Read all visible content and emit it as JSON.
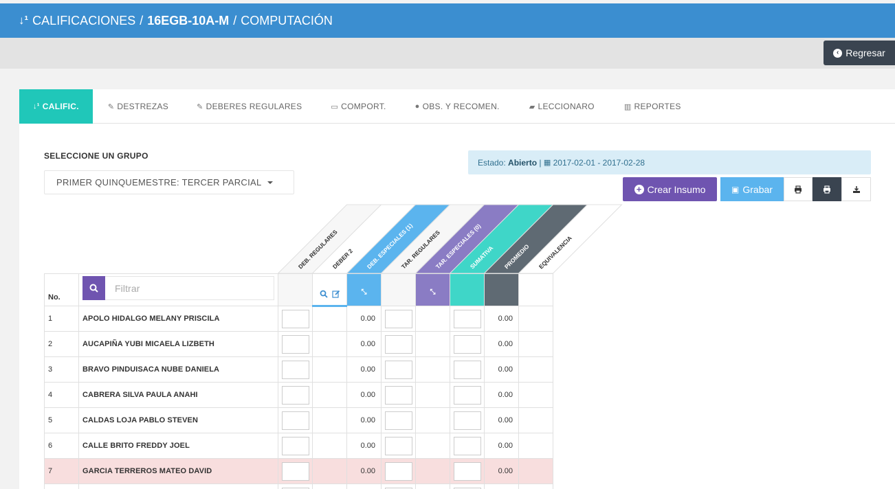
{
  "header": {
    "sort_icon": "sort-numeric-icon",
    "module": "CALIFICACIONES",
    "separator": "/",
    "course": "16EGB-10A-M",
    "subject": "COMPUTACIÓN"
  },
  "back_button": {
    "label": "Regresar",
    "icon": "arrow-circle-left-icon"
  },
  "tabs": [
    {
      "label": "CALIFIC.",
      "icon": "sort-numeric-icon",
      "active": true
    },
    {
      "label": "DESTREZAS",
      "icon": "edit-icon"
    },
    {
      "label": "DEBERES REGULARES",
      "icon": "edit-icon"
    },
    {
      "label": "COMPORT.",
      "icon": "keyboard-icon"
    },
    {
      "label": "OBS. Y RECOMEN.",
      "icon": "comments-icon"
    },
    {
      "label": "LECCIONARO",
      "icon": "book-icon"
    },
    {
      "label": "REPORTES",
      "icon": "bar-chart-icon"
    }
  ],
  "group": {
    "label": "SELECCIONE UN GRUPO",
    "selected": "PRIMER QUINQUEMESTRE: TERCER PARCIAL"
  },
  "estado": {
    "label": "Estado:",
    "value": "Abierto",
    "separator": "|",
    "date_range": "2017-02-01 - 2017-02-28"
  },
  "actions": {
    "crear": "Crear Insumo",
    "grabar": "Grabar"
  },
  "table": {
    "no_header": "No.",
    "filter_placeholder": "Filtrar",
    "columns": [
      {
        "label": "DEB. REGULARES",
        "color": "#f7f7f7",
        "text_color": "#333333"
      },
      {
        "label": "DEBER 2",
        "color": "#ffffff",
        "text_color": "#333333"
      },
      {
        "label": "DEB. ESPECIALES (1)",
        "color": "#5bb4ee",
        "text_color": "#ffffff"
      },
      {
        "label": "TAR. REGULARES",
        "color": "#f7f7f7",
        "text_color": "#333333"
      },
      {
        "label": "TAR. ESPECIALES (0)",
        "color": "#8a7cc4",
        "text_color": "#ffffff"
      },
      {
        "label": "SUMATIVA",
        "color": "#3fd6c8",
        "text_color": "#ffffff"
      },
      {
        "label": "PROMEDIO",
        "color": "#5f6a73",
        "text_color": "#ffffff"
      },
      {
        "label": "EQUIVALENCIA",
        "color": "#ffffff",
        "text_color": "#333333"
      }
    ],
    "rows": [
      {
        "no": "1",
        "name": "APOLO HIDALGO MELANY PRISCILA",
        "deb_especiales": "0.00",
        "promedio": "0.00",
        "highlight": false
      },
      {
        "no": "2",
        "name": "AUCAPIÑA YUBI MICAELA LIZBETH",
        "deb_especiales": "0.00",
        "promedio": "0.00",
        "highlight": false
      },
      {
        "no": "3",
        "name": "BRAVO PINDUISACA NUBE DANIELA",
        "deb_especiales": "0.00",
        "promedio": "0.00",
        "highlight": false
      },
      {
        "no": "4",
        "name": "CABRERA SILVA PAULA ANAHI",
        "deb_especiales": "0.00",
        "promedio": "0.00",
        "highlight": false
      },
      {
        "no": "5",
        "name": "CALDAS LOJA PABLO STEVEN",
        "deb_especiales": "0.00",
        "promedio": "0.00",
        "highlight": false
      },
      {
        "no": "6",
        "name": "CALLE BRITO FREDDY JOEL",
        "deb_especiales": "0.00",
        "promedio": "0.00",
        "highlight": false
      },
      {
        "no": "7",
        "name": "GARCIA TERREROS MATEO DAVID",
        "deb_especiales": "0.00",
        "promedio": "0.00",
        "highlight": true
      },
      {
        "no": "",
        "name": "",
        "deb_especiales": "",
        "promedio": "",
        "highlight": false
      }
    ]
  }
}
